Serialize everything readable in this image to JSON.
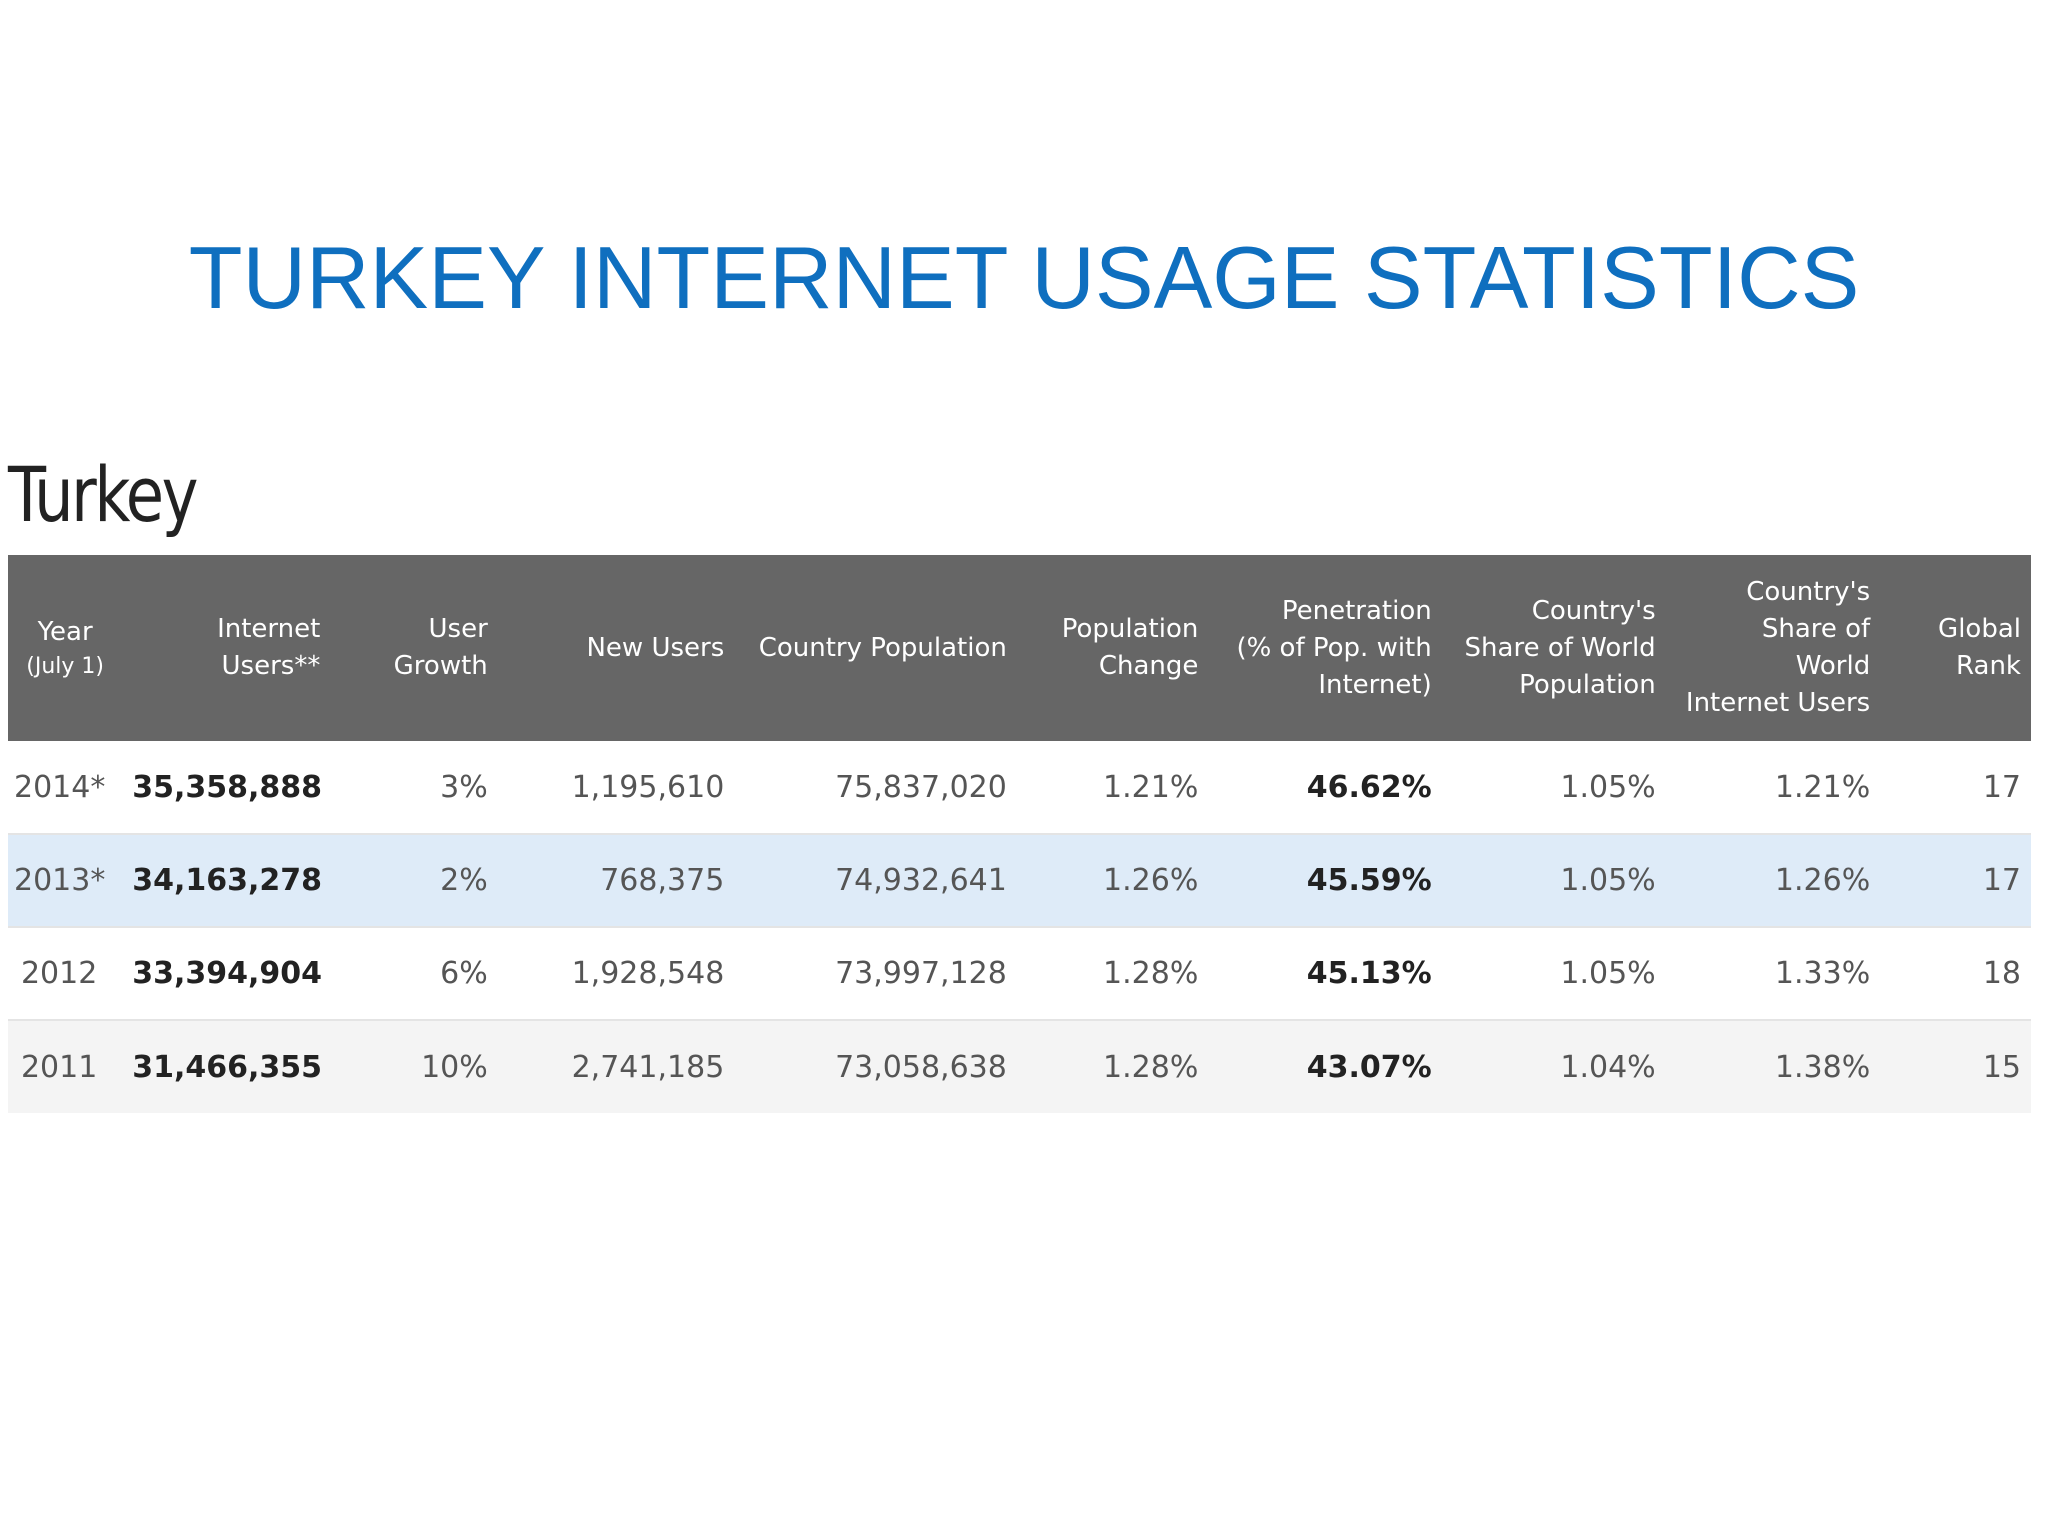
{
  "slide": {
    "title": "TURKEY INTERNET USAGE STATISTICS"
  },
  "table": {
    "caption": "Turkey",
    "headers": [
      {
        "label": "Year",
        "sub": "(July 1)"
      },
      {
        "label": "Internet Users**"
      },
      {
        "label": "User\nGrowth"
      },
      {
        "label": "New Users"
      },
      {
        "label": "Country Population"
      },
      {
        "label": "Population\nChange"
      },
      {
        "label": "Penetration\n(% of Pop. with\nInternet)"
      },
      {
        "label": "Country's\nShare of World\nPopulation"
      },
      {
        "label": "Country's\nShare of\nWorld\nInternet Users"
      },
      {
        "label": "Global\nRank"
      }
    ],
    "rows": [
      [
        "2014*",
        "35,358,888",
        "3%",
        "1,195,610",
        "75,837,020",
        "1.21%",
        "46.62%",
        "1.05%",
        "1.21%",
        "17"
      ],
      [
        "2013*",
        "34,163,278",
        "2%",
        "768,375",
        "74,932,641",
        "1.26%",
        "45.59%",
        "1.05%",
        "1.26%",
        "17"
      ],
      [
        "2012",
        "33,394,904",
        "6%",
        "1,928,548",
        "73,997,128",
        "1.28%",
        "45.13%",
        "1.05%",
        "1.33%",
        "18"
      ],
      [
        "2011",
        "31,466,355",
        "10%",
        "2,741,185",
        "73,058,638",
        "1.28%",
        "43.07%",
        "1.04%",
        "1.38%",
        "15"
      ]
    ]
  },
  "colors": {
    "title": "#0f6fbf",
    "header_bg": "#666666",
    "highlight_row": "#deebf8",
    "alt_row": "#f4f4f4"
  }
}
